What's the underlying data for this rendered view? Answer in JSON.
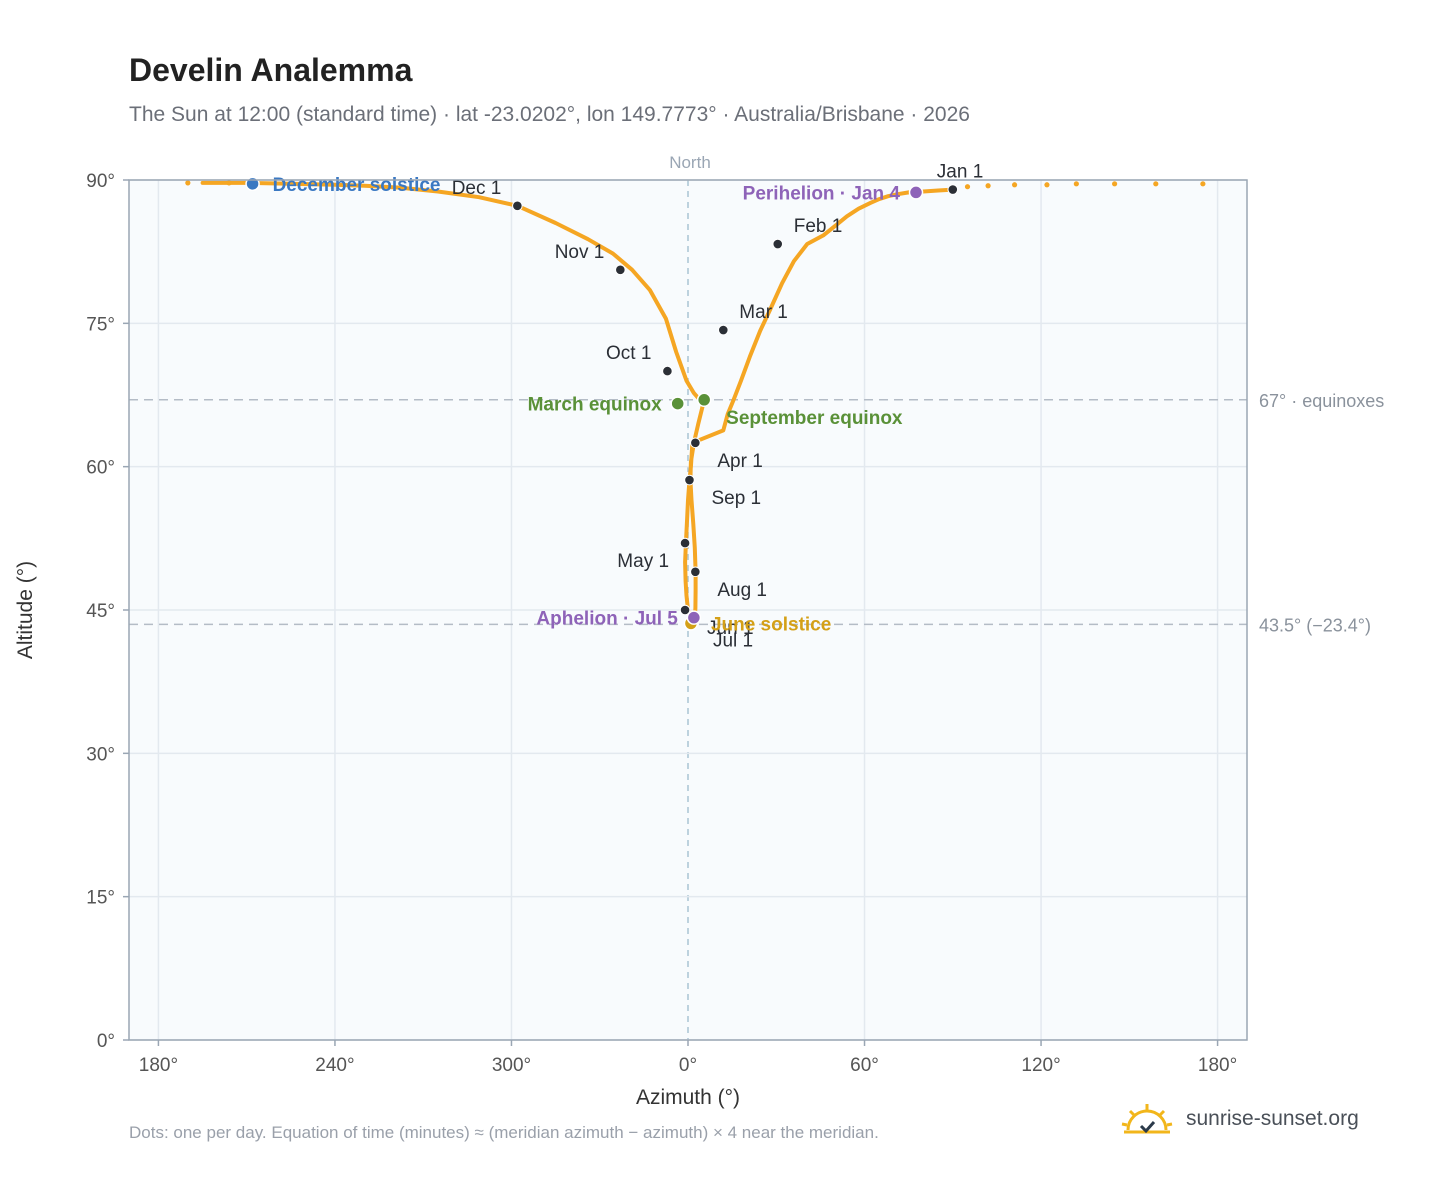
{
  "chart_data": {
    "type": "scatter",
    "title": "Develin Analemma",
    "subtitle": "The Sun at 12:00 (standard time) · lat -23.0202°, lon 149.7773° · Australia/Brisbane · 2026",
    "xlabel": "Azimuth (°)",
    "ylabel": "Altitude (°)",
    "x_center_label": "North",
    "xlim": [
      170,
      190
    ],
    "ylim": [
      0,
      90
    ],
    "x_ticks": [
      {
        "value": 180,
        "label": "180°"
      },
      {
        "value": 240,
        "label": "240°"
      },
      {
        "value": 300,
        "label": "300°"
      },
      {
        "value": 360,
        "label": "0°"
      },
      {
        "value": 420,
        "label": "60°"
      },
      {
        "value": 480,
        "label": "120°"
      },
      {
        "value": 540,
        "label": "180°"
      }
    ],
    "y_ticks": [
      {
        "value": 0,
        "label": "0°"
      },
      {
        "value": 15,
        "label": "15°"
      },
      {
        "value": 30,
        "label": "30°"
      },
      {
        "value": 45,
        "label": "45°"
      },
      {
        "value": 60,
        "label": "60°"
      },
      {
        "value": 75,
        "label": "75°"
      },
      {
        "value": 90,
        "label": "90°"
      }
    ],
    "grid": true,
    "reference_lines": [
      {
        "value": 67,
        "label": "67° · equinoxes"
      },
      {
        "value": 43.5,
        "label": "43.5° (−23.4°)"
      }
    ],
    "path_points": [
      [
        450.0,
        89.0
      ],
      [
        445.0,
        88.9
      ],
      [
        440.0,
        88.8
      ],
      [
        435.0,
        88.7
      ],
      [
        431.0,
        88.5
      ],
      [
        428.0,
        88.3
      ],
      [
        425.0,
        88.0
      ],
      [
        422.0,
        87.6
      ],
      [
        418.0,
        87.0
      ],
      [
        414.0,
        86.2
      ],
      [
        410.0,
        85.2
      ],
      [
        406.0,
        84.2
      ],
      [
        400.5,
        83.3
      ],
      [
        396.0,
        81.5
      ],
      [
        392.0,
        79.2
      ],
      [
        388.0,
        76.5
      ],
      [
        384.5,
        74.2
      ],
      [
        381.0,
        71.5
      ],
      [
        378.0,
        69.0
      ],
      [
        375.5,
        67.0
      ],
      [
        373.5,
        65.5
      ],
      [
        372.0,
        63.8
      ],
      [
        361.5,
        62.5
      ],
      [
        361.0,
        60.0
      ],
      [
        360.5,
        58.6
      ],
      [
        360.0,
        56.5
      ],
      [
        359.7,
        54.5
      ],
      [
        359.3,
        52.0
      ],
      [
        359.0,
        50.0
      ],
      [
        359.2,
        48.0
      ],
      [
        359.5,
        46.5
      ],
      [
        360.0,
        45.0
      ],
      [
        360.6,
        44.3
      ],
      [
        361.3,
        44.0
      ],
      [
        362.0,
        44.0
      ],
      [
        362.3,
        44.3
      ],
      [
        362.5,
        45.2
      ],
      [
        362.6,
        47.0
      ],
      [
        362.6,
        49.0
      ],
      [
        362.3,
        51.5
      ],
      [
        361.8,
        54.0
      ],
      [
        361.2,
        56.5
      ],
      [
        360.8,
        58.6
      ],
      [
        361.0,
        60.5
      ],
      [
        362.0,
        62.5
      ],
      [
        363.5,
        64.5
      ],
      [
        365.5,
        67.0
      ],
      [
        364.0,
        67.0
      ],
      [
        362.0,
        67.7
      ],
      [
        359.5,
        69.0
      ],
      [
        356.0,
        72.0
      ],
      [
        352.5,
        75.5
      ],
      [
        347.0,
        78.5
      ],
      [
        341.0,
        80.6
      ],
      [
        334.5,
        82.3
      ],
      [
        326.0,
        83.8
      ],
      [
        315.0,
        85.5
      ],
      [
        302.0,
        87.3
      ],
      [
        289.0,
        88.2
      ],
      [
        275.0,
        88.8
      ],
      [
        262.0,
        89.2
      ],
      [
        250.0,
        89.4
      ],
      [
        240.0,
        89.5
      ],
      [
        225.0,
        89.6
      ],
      [
        210.0,
        89.7
      ],
      [
        195.0,
        89.7
      ]
    ],
    "sparse_points": [
      [
        190.0,
        89.7
      ],
      [
        204.0,
        89.7
      ],
      [
        455.0,
        89.3
      ],
      [
        462.0,
        89.4
      ],
      [
        471.0,
        89.5
      ],
      [
        482.0,
        89.5
      ],
      [
        492.0,
        89.6
      ],
      [
        505.0,
        89.6
      ],
      [
        519.0,
        89.6
      ],
      [
        535.0,
        89.6
      ]
    ],
    "monthly_markers": [
      {
        "label": "Jan 1",
        "x": 450.0,
        "y": 89.0,
        "anchor": "above"
      },
      {
        "label": "Feb 1",
        "x": 390.5,
        "y": 83.3,
        "anchor": "right-up"
      },
      {
        "label": "Mar 1",
        "x": 372.0,
        "y": 74.3,
        "anchor": "right-up"
      },
      {
        "label": "Apr 1",
        "x": 362.5,
        "y": 62.5,
        "anchor": "right-down"
      },
      {
        "label": "May 1",
        "x": 359.0,
        "y": 52.0,
        "anchor": "left-down"
      },
      {
        "label": "Jun 1",
        "x": 359.0,
        "y": 45.0,
        "anchor": "right-down"
      },
      {
        "label": "Jul 1",
        "x": 361.0,
        "y": 43.7,
        "anchor": "right-down"
      },
      {
        "label": "Aug 1",
        "x": 362.5,
        "y": 49.0,
        "anchor": "right-down"
      },
      {
        "label": "Sep 1",
        "x": 360.5,
        "y": 58.6,
        "anchor": "right-down"
      },
      {
        "label": "Oct 1",
        "x": 353.0,
        "y": 70.0,
        "anchor": "left-up"
      },
      {
        "label": "Nov 1",
        "x": 337.0,
        "y": 80.6,
        "anchor": "left-up"
      },
      {
        "label": "Dec 1",
        "x": 302.0,
        "y": 87.3,
        "anchor": "left-up"
      }
    ],
    "events": [
      {
        "label": "December solstice",
        "x": 212.0,
        "y": 89.6,
        "color": "#3a78c2",
        "anchor": "right"
      },
      {
        "label": "March equinox",
        "x": 356.5,
        "y": 66.6,
        "color": "#5a9138",
        "anchor": "left"
      },
      {
        "label": "September equinox",
        "x": 365.5,
        "y": 67.0,
        "color": "#5a9138",
        "anchor": "right-down"
      },
      {
        "label": "June solstice",
        "x": 361.0,
        "y": 43.6,
        "color": "#d4a017",
        "anchor": "right"
      },
      {
        "label": "Perihelion · Jan 4",
        "x": 437.5,
        "y": 88.7,
        "color": "#8e63b8",
        "anchor": "left"
      },
      {
        "label": "Aphelion · Jul 5",
        "x": 362.0,
        "y": 44.2,
        "color": "#8e63b8",
        "anchor": "left"
      }
    ],
    "footnote": "Dots: one per day. Equation of time (minutes) ≈ (meridian azimuth − azimuth) × 4 near the meridian.",
    "path_color": "#f5a623"
  },
  "brand": {
    "name": "sunrise-sunset.org",
    "icon": "sun-logo-icon",
    "color": "#f2b61b"
  }
}
